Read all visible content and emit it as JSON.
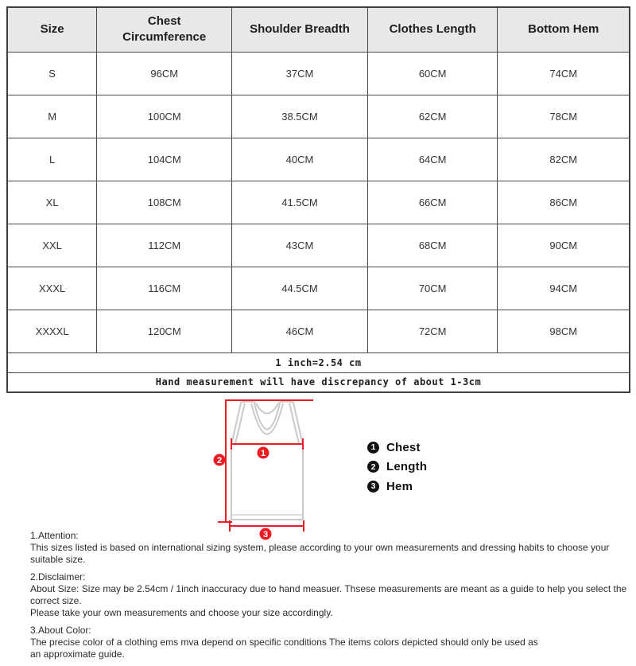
{
  "size_chart": {
    "headers": [
      "Size",
      "Chest\nCircumference",
      "Shoulder Breadth",
      "Clothes Length",
      "Bottom Hem"
    ],
    "rows": [
      [
        "S",
        "96CM",
        "37CM",
        "60CM",
        "74CM"
      ],
      [
        "M",
        "100CM",
        "38.5CM",
        "62CM",
        "78CM"
      ],
      [
        "L",
        "104CM",
        "40CM",
        "64CM",
        "82CM"
      ],
      [
        "XL",
        "108CM",
        "41.5CM",
        "66CM",
        "86CM"
      ],
      [
        "XXL",
        "112CM",
        "43CM",
        "68CM",
        "90CM"
      ],
      [
        "XXXL",
        "116CM",
        "44.5CM",
        "70CM",
        "94CM"
      ],
      [
        "XXXXL",
        "120CM",
        "46CM",
        "72CM",
        "98CM"
      ]
    ],
    "notes": [
      "1 inch=2.54 cm",
      "Hand measurement will have discrepancy of about 1-3cm"
    ],
    "header_bg": "#e8e8e8",
    "border_color": "#4a4a4a"
  },
  "diagram": {
    "legend": [
      {
        "number": "1",
        "label": "Chest"
      },
      {
        "number": "2",
        "label": "Length"
      },
      {
        "number": "3",
        "label": "Hem"
      }
    ],
    "marker_color": "#ed1c24",
    "outline_color": "#c9c9c9"
  },
  "info_sections": [
    {
      "title": "1.Attention:",
      "lines": [
        "This sizes listed is based on international sizing system, please according to your own measurements and dressing habits to choose your suitable size."
      ]
    },
    {
      "title": "2.Disclaimer:",
      "lines": [
        "About Size: Size may be 2.54cm / 1inch inaccuracy due to hand measuer. Thsese measurements are meant as a guide to help you select the correct size.",
        "Please take your own measurements and choose your size accordingly."
      ]
    },
    {
      "title": "3.About Color:",
      "lines": [
        "The precise color of a clothing ems mva depend on specific conditions The items colors depicted should only be used as",
        "an approximate guide."
      ]
    }
  ]
}
